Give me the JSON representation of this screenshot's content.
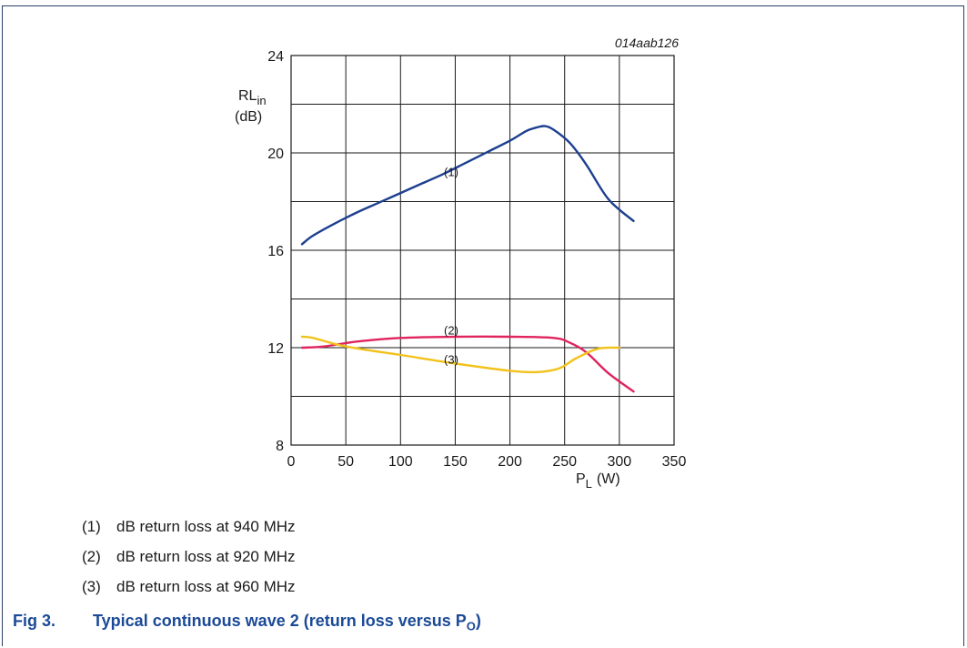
{
  "chart_data": {
    "type": "line",
    "figure_code": "014aab126",
    "ylabel_main": "RL",
    "ylabel_sub": "in",
    "ylabel_unit": "(dB)",
    "xlabel_main": "P",
    "xlabel_sub": "L",
    "xlabel_unit": "(W)",
    "xlim": [
      0,
      350
    ],
    "ylim": [
      8,
      24
    ],
    "xticks": [
      0,
      50,
      100,
      150,
      200,
      250,
      300,
      350
    ],
    "yticks": [
      8,
      12,
      16,
      20,
      24
    ],
    "grid": true,
    "series": [
      {
        "name": "(1)",
        "color": "#1c3f8f",
        "x": [
          10,
          20,
          40,
          60,
          80,
          100,
          120,
          140,
          160,
          180,
          200,
          215,
          225,
          232,
          240,
          255,
          270,
          290,
          313
        ],
        "y": [
          16.25,
          16.6,
          17.1,
          17.55,
          17.95,
          18.35,
          18.75,
          19.15,
          19.6,
          20.05,
          20.5,
          20.9,
          21.05,
          21.1,
          20.95,
          20.4,
          19.5,
          18.1,
          17.2
        ]
      },
      {
        "name": "(2)",
        "color": "#e0245e",
        "x": [
          10,
          30,
          60,
          100,
          150,
          200,
          240,
          255,
          270,
          290,
          313
        ],
        "y": [
          12.0,
          12.05,
          12.25,
          12.4,
          12.45,
          12.45,
          12.4,
          12.2,
          11.8,
          10.95,
          10.2
        ]
      },
      {
        "name": "(3)",
        "color": "#f2c21b",
        "x": [
          10,
          20,
          50,
          100,
          150,
          200,
          225,
          245,
          260,
          280,
          300
        ],
        "y": [
          12.45,
          12.4,
          12.05,
          11.7,
          11.35,
          11.05,
          11.0,
          11.15,
          11.55,
          11.95,
          12.0
        ]
      }
    ],
    "annotations": [
      {
        "text": "(1)",
        "x": 148,
        "y": 19.2
      },
      {
        "text": "(2)",
        "x": 148,
        "y": 12.7
      },
      {
        "text": "(3)",
        "x": 148,
        "y": 11.5
      }
    ]
  },
  "legend": [
    {
      "num": "(1)",
      "text": "dB return loss at 940 MHz"
    },
    {
      "num": "(2)",
      "text": "dB return loss at 920 MHz"
    },
    {
      "num": "(3)",
      "text": "dB return loss at 960 MHz"
    }
  ],
  "caption": {
    "fig": "Fig 3.",
    "text": "Typical continuous wave 2 (return loss versus P",
    "sub": "O",
    "end": ")"
  }
}
